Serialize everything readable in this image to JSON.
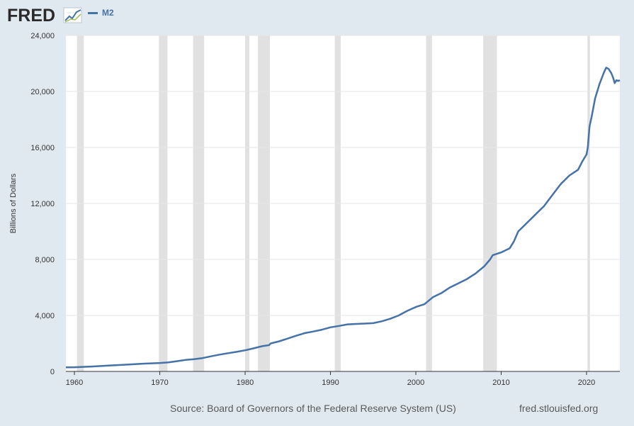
{
  "header": {
    "logo_text": "FRED",
    "legend_label": "M2"
  },
  "footer": {
    "source": "Source: Board of Governors of the Federal Reserve System (US)",
    "url": "fred.stlouisfed.org"
  },
  "colors": {
    "line": "#4572a7",
    "recession": "#e1e1e1",
    "plot_bg": "#ffffff",
    "page_bg": "#e1e9f0",
    "grid": "#e6e6e6"
  },
  "chart_data": {
    "type": "line",
    "title": "",
    "xlabel": "",
    "ylabel": "Billions of Dollars",
    "xlim": [
      1959.0,
      2023.9
    ],
    "ylim": [
      0,
      24000
    ],
    "grid": true,
    "legend_position": "top-left",
    "y_ticks": [
      {
        "value": 0,
        "label": "0"
      },
      {
        "value": 4000,
        "label": "4,000"
      },
      {
        "value": 8000,
        "label": "8,000"
      },
      {
        "value": 12000,
        "label": "12,000"
      },
      {
        "value": 16000,
        "label": "16,000"
      },
      {
        "value": 20000,
        "label": "20,000"
      },
      {
        "value": 24000,
        "label": "24,000"
      }
    ],
    "x_ticks": [
      {
        "value": 1960,
        "label": "1960"
      },
      {
        "value": 1970,
        "label": "1970"
      },
      {
        "value": 1980,
        "label": "1980"
      },
      {
        "value": 1990,
        "label": "1990"
      },
      {
        "value": 2000,
        "label": "2000"
      },
      {
        "value": 2010,
        "label": "2010"
      },
      {
        "value": 2020,
        "label": "2020"
      }
    ],
    "recessions": [
      [
        1960.3,
        1961.1
      ],
      [
        1969.9,
        1970.9
      ],
      [
        1973.9,
        1975.2
      ],
      [
        1980.0,
        1980.5
      ],
      [
        1981.5,
        1982.9
      ],
      [
        1990.5,
        1991.2
      ],
      [
        2001.2,
        2001.9
      ],
      [
        2007.9,
        2009.5
      ],
      [
        2020.1,
        2020.4
      ]
    ],
    "series": [
      {
        "name": "M2",
        "x": [
          1959.0,
          1960.0,
          1962.0,
          1964.0,
          1966.0,
          1968.0,
          1970.0,
          1971.0,
          1972.0,
          1973.0,
          1974.0,
          1975.0,
          1976.0,
          1977.0,
          1978.0,
          1979.0,
          1980.0,
          1981.0,
          1982.0,
          1982.8,
          1983.0,
          1984.0,
          1985.0,
          1986.0,
          1987.0,
          1988.0,
          1989.0,
          1990.0,
          1991.0,
          1992.0,
          1993.0,
          1994.0,
          1995.0,
          1996.0,
          1997.0,
          1998.0,
          1999.0,
          2000.0,
          2001.0,
          2002.0,
          2003.0,
          2003.5,
          2004.0,
          2005.0,
          2006.0,
          2007.0,
          2008.0,
          2008.7,
          2009.0,
          2009.5,
          2010.0,
          2011.0,
          2011.5,
          2012.0,
          2013.0,
          2014.0,
          2015.0,
          2016.0,
          2017.0,
          2018.0,
          2019.0,
          2019.5,
          2020.0,
          2020.15,
          2020.35,
          2020.6,
          2021.0,
          2021.5,
          2022.0,
          2022.3,
          2022.6,
          2022.9,
          2023.1,
          2023.3,
          2023.5,
          2023.7,
          2023.9
        ],
        "values": [
          290,
          300,
          350,
          420,
          480,
          550,
          600,
          650,
          730,
          820,
          870,
          950,
          1080,
          1200,
          1300,
          1400,
          1510,
          1650,
          1800,
          1880,
          2000,
          2150,
          2350,
          2550,
          2740,
          2850,
          2980,
          3150,
          3250,
          3360,
          3390,
          3420,
          3450,
          3580,
          3760,
          4000,
          4330,
          4600,
          4800,
          5300,
          5600,
          5800,
          6000,
          6300,
          6600,
          7000,
          7500,
          8000,
          8300,
          8400,
          8500,
          8800,
          9300,
          10000,
          10600,
          11200,
          11800,
          12600,
          13400,
          14000,
          14400,
          15000,
          15500,
          16000,
          17500,
          18200,
          19500,
          20500,
          21300,
          21700,
          21600,
          21300,
          21000,
          20600,
          20800,
          20750,
          20800
        ]
      }
    ]
  }
}
